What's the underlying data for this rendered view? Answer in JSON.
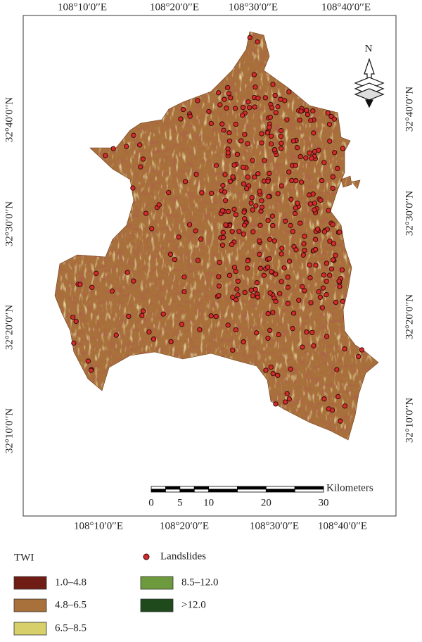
{
  "top_axis_labels": [
    "108°10′0′′E",
    "108°20′0′′E",
    "108°30′0′′E",
    "108°40′0′′E"
  ],
  "bottom_axis_labels": [
    "108°10′0′′E",
    "108°20′0′′E",
    "108°30′0′′E",
    "108°40′0′′E"
  ],
  "left_axis_labels": [
    "32°40′0′′N",
    "32°30′0′′N",
    "32°20′0′′N",
    "32°10′0′′N"
  ],
  "right_axis_labels": [
    "32°40′0′′N",
    "32°30′0′′N",
    "32°20′0′′N",
    "32°10′0′′N"
  ],
  "north_arrow": "N",
  "scale_bar": {
    "ticks": [
      0,
      5,
      10,
      20,
      30
    ],
    "unit": "Kilometers"
  },
  "legend": {
    "title": "TWI",
    "classes": [
      {
        "label": "1.0–4.8",
        "color": "#6e1c14"
      },
      {
        "label": "4.8–6.5",
        "color": "#a8703a"
      },
      {
        "label": "6.5–8.5",
        "color": "#d6cf6a"
      },
      {
        "label": "8.5–12.0",
        "color": "#6e9a3e"
      },
      {
        "label": ">12.0",
        "color": "#1f4a1c"
      }
    ],
    "landslides": "Landslides"
  }
}
